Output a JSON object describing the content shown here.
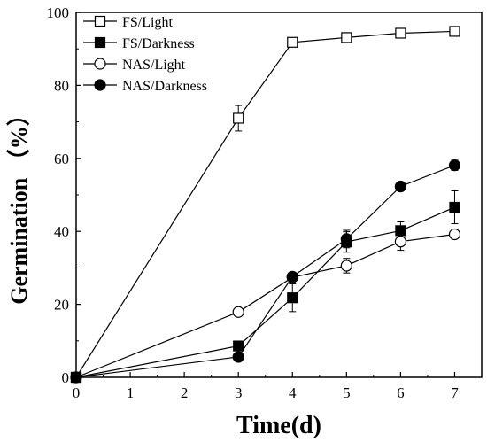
{
  "chart_data": {
    "type": "line",
    "xlabel": "Time(d)",
    "ylabel": "Germination （%）",
    "xlim": [
      0,
      7.5
    ],
    "ylim": [
      0,
      100
    ],
    "xticks": [
      "0",
      "1",
      "2",
      "3",
      "4",
      "5",
      "6",
      "7"
    ],
    "yticks": [
      "0",
      "20",
      "40",
      "60",
      "80",
      "100"
    ],
    "grid": false,
    "legend_position": "top-left",
    "series": [
      {
        "name": "FS/Light",
        "marker": "square-open",
        "x": [
          0,
          3,
          4,
          5,
          6,
          7
        ],
        "y": [
          0,
          71,
          91.8,
          93.1,
          94.3,
          94.8
        ],
        "err": [
          0,
          3.5,
          0.8,
          0.7,
          1.0,
          1.0
        ]
      },
      {
        "name": "FS/Darkness",
        "marker": "square-filled",
        "x": [
          0,
          3,
          4,
          5,
          6,
          7
        ],
        "y": [
          0,
          8.6,
          21.8,
          37.1,
          40.2,
          46.6
        ],
        "err": [
          0,
          0.8,
          3.8,
          2.8,
          2.4,
          4.5
        ]
      },
      {
        "name": "NAS/Light",
        "marker": "circle-open",
        "x": [
          0,
          3,
          4,
          5,
          6,
          7
        ],
        "y": [
          0,
          17.9,
          27.4,
          30.6,
          37.2,
          39.2
        ],
        "err": [
          0,
          0.7,
          1.0,
          2.0,
          2.4,
          1.0
        ]
      },
      {
        "name": "NAS/Darkness",
        "marker": "circle-filled",
        "x": [
          0,
          3,
          4,
          5,
          6,
          7
        ],
        "y": [
          0,
          5.6,
          27.6,
          37.9,
          52.3,
          58.1
        ],
        "err": [
          0,
          0.3,
          1.2,
          2.4,
          1.2,
          1.4
        ]
      }
    ]
  }
}
